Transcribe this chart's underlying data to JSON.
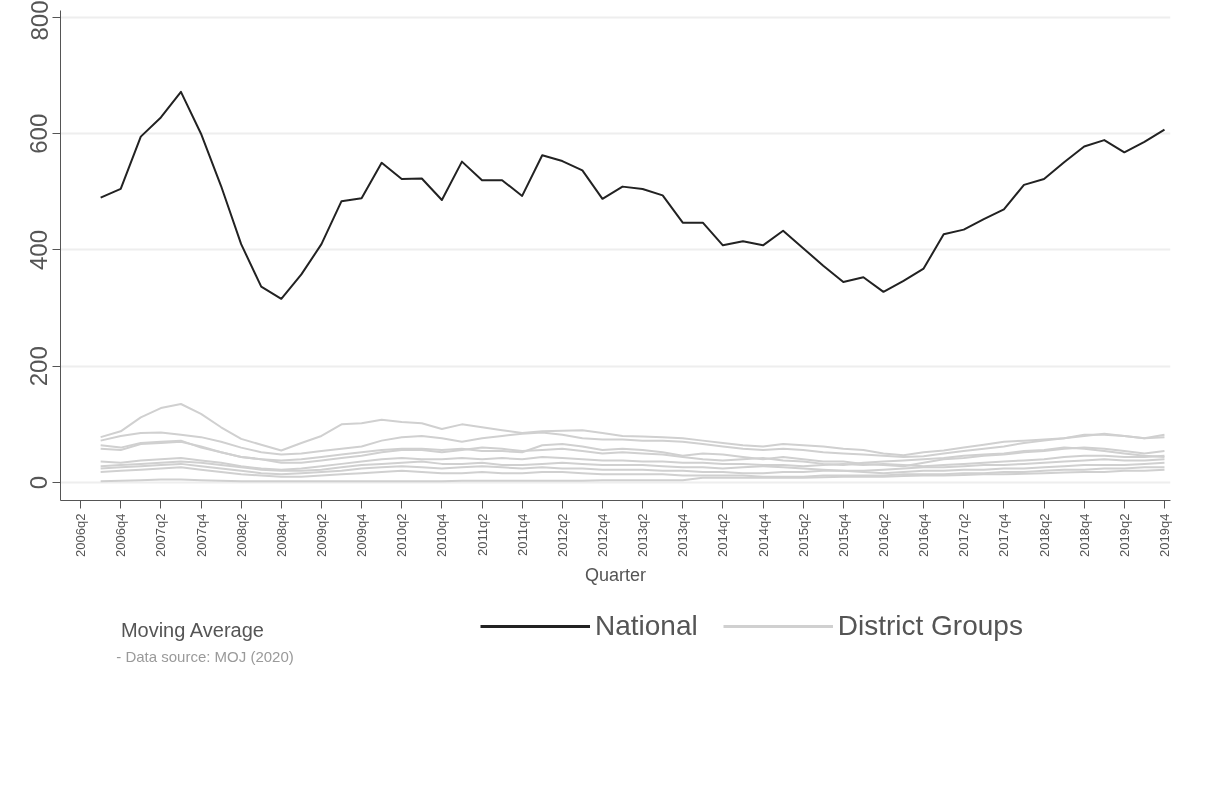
{
  "chart_data": {
    "type": "line",
    "xlabel": "Quarter",
    "legend_title": "Moving Average",
    "annotations": [
      "- Data source: MOJ (2020)"
    ],
    "categories": [
      "2006q2",
      null,
      "2006q4",
      null,
      "2007q2",
      null,
      "2007q4",
      null,
      "2008q2",
      null,
      "2008q4",
      null,
      "2009q2",
      null,
      "2009q4",
      null,
      "2010q2",
      null,
      "2010q4",
      null,
      "2011q2",
      null,
      "2011q4",
      null,
      "2012q2",
      null,
      "2012q4",
      null,
      "2013q2",
      null,
      "2013q4",
      null,
      "2014q2",
      null,
      "2014q4",
      null,
      "2015q2",
      null,
      "2015q4",
      null,
      "2016q2",
      null,
      "2016q4",
      null,
      "2017q2",
      null,
      "2017q4",
      null,
      "2018q2",
      null,
      "2018q4",
      null,
      "2019q2",
      null,
      "2019q4"
    ],
    "ylim": [
      -31,
      812
    ],
    "yticks": [
      0,
      200,
      400,
      600,
      800
    ],
    "grid": "y",
    "legend": "bottom",
    "series": [
      {
        "color": "#d0d0d0",
        "values": [
          null,
          78,
          88,
          112,
          128,
          135,
          118,
          95,
          75,
          65,
          55,
          68,
          80,
          100,
          102,
          108,
          104,
          102,
          92,
          100,
          95,
          90,
          85,
          88,
          89,
          90,
          85,
          80,
          79,
          78,
          76,
          72,
          68,
          64,
          62,
          66,
          64,
          62,
          58,
          56,
          50,
          47,
          52,
          55,
          60,
          65,
          70,
          72,
          74,
          76,
          82,
          82,
          80,
          76,
          82
        ]
      },
      {
        "color": "#d0d0d0",
        "values": [
          null,
          72,
          80,
          85,
          86,
          82,
          78,
          70,
          60,
          52,
          48,
          50,
          54,
          58,
          62,
          72,
          78,
          80,
          76,
          70,
          76,
          80,
          84,
          86,
          82,
          76,
          74,
          74,
          72,
          72,
          70,
          66,
          62,
          58,
          56,
          58,
          56,
          52,
          50,
          48,
          46,
          44,
          45,
          50,
          54,
          58,
          62,
          68,
          72,
          76,
          80,
          84,
          80,
          76,
          78
        ]
      },
      {
        "color": "#d0d0d0",
        "values": [
          null,
          58,
          56,
          66,
          68,
          70,
          62,
          52,
          44,
          40,
          38,
          40,
          44,
          48,
          52,
          56,
          58,
          58,
          56,
          58,
          54,
          54,
          52,
          64,
          66,
          62,
          56,
          58,
          56,
          52,
          46,
          50,
          48,
          44,
          40,
          44,
          40,
          36,
          36,
          32,
          30,
          28,
          34,
          40,
          42,
          46,
          48,
          52,
          54,
          58,
          60,
          58,
          54,
          50,
          54
        ]
      },
      {
        "color": "#d0d0d0",
        "values": [
          null,
          64,
          60,
          68,
          70,
          72,
          60,
          52,
          44,
          40,
          34,
          34,
          38,
          42,
          46,
          52,
          56,
          56,
          52,
          56,
          60,
          58,
          54,
          56,
          58,
          54,
          50,
          52,
          50,
          48,
          44,
          40,
          38,
          40,
          42,
          38,
          36,
          32,
          30,
          34,
          36,
          38,
          40,
          42,
          46,
          48,
          50,
          54,
          56,
          60,
          58,
          54,
          50,
          46,
          44
        ]
      },
      {
        "color": "#d0d0d0",
        "values": [
          null,
          36,
          34,
          38,
          40,
          42,
          38,
          34,
          28,
          24,
          22,
          24,
          28,
          32,
          36,
          40,
          42,
          40,
          40,
          42,
          40,
          42,
          40,
          44,
          42,
          40,
          38,
          38,
          36,
          36,
          34,
          34,
          32,
          32,
          30,
          30,
          28,
          30,
          32,
          30,
          32,
          30,
          28,
          30,
          32,
          34,
          36,
          38,
          40,
          44,
          46,
          46,
          44,
          44,
          46
        ]
      },
      {
        "color": "#d0d0d0",
        "values": [
          null,
          28,
          30,
          32,
          34,
          36,
          34,
          30,
          26,
          22,
          20,
          20,
          22,
          26,
          30,
          32,
          34,
          36,
          32,
          32,
          34,
          30,
          30,
          32,
          34,
          32,
          30,
          30,
          30,
          28,
          26,
          26,
          24,
          26,
          28,
          26,
          24,
          22,
          20,
          20,
          22,
          24,
          26,
          26,
          28,
          30,
          30,
          32,
          34,
          36,
          38,
          40,
          38,
          38,
          40
        ]
      },
      {
        "color": "#d0d0d0",
        "values": [
          null,
          24,
          26,
          28,
          30,
          32,
          28,
          24,
          20,
          16,
          14,
          16,
          18,
          20,
          24,
          26,
          28,
          26,
          24,
          26,
          28,
          26,
          24,
          26,
          24,
          24,
          22,
          22,
          22,
          20,
          20,
          18,
          18,
          16,
          16,
          18,
          18,
          20,
          20,
          18,
          16,
          18,
          20,
          20,
          22,
          22,
          24,
          24,
          26,
          28,
          30,
          30,
          30,
          32,
          34
        ]
      },
      {
        "color": "#d0d0d0",
        "values": [
          null,
          18,
          20,
          22,
          24,
          26,
          22,
          18,
          14,
          12,
          10,
          10,
          12,
          14,
          16,
          18,
          20,
          18,
          16,
          16,
          18,
          16,
          16,
          18,
          18,
          16,
          14,
          14,
          14,
          14,
          12,
          12,
          12,
          12,
          10,
          10,
          10,
          12,
          12,
          12,
          12,
          14,
          14,
          14,
          16,
          16,
          18,
          18,
          20,
          22,
          22,
          24,
          24,
          26,
          26
        ]
      },
      {
        "name": "District Groups",
        "color": "#d0d0d0",
        "values": [
          null,
          2,
          3,
          4,
          5,
          5,
          4,
          3,
          2,
          2,
          2,
          2,
          2,
          2,
          2,
          2,
          2,
          2,
          2,
          3,
          3,
          3,
          3,
          3,
          3,
          3,
          4,
          4,
          4,
          4,
          4,
          8,
          8,
          8,
          8,
          8,
          8,
          9,
          10,
          10,
          10,
          11,
          12,
          12,
          13,
          14,
          14,
          15,
          16,
          17,
          18,
          18,
          20,
          20,
          22
        ]
      },
      {
        "name": "National",
        "color": "#222222",
        "values": [
          null,
          490,
          505,
          595,
          628,
          672,
          600,
          510,
          410,
          337,
          316,
          358,
          410,
          484,
          489,
          550,
          522,
          523,
          486,
          552,
          520,
          520,
          493,
          563,
          553,
          537,
          488,
          509,
          505,
          494,
          447,
          447,
          408,
          415,
          408,
          433,
          403,
          373,
          345,
          353,
          328,
          347,
          368,
          427,
          435,
          453,
          470,
          512,
          522,
          551,
          578,
          589,
          568,
          586,
          607
        ]
      }
    ]
  }
}
